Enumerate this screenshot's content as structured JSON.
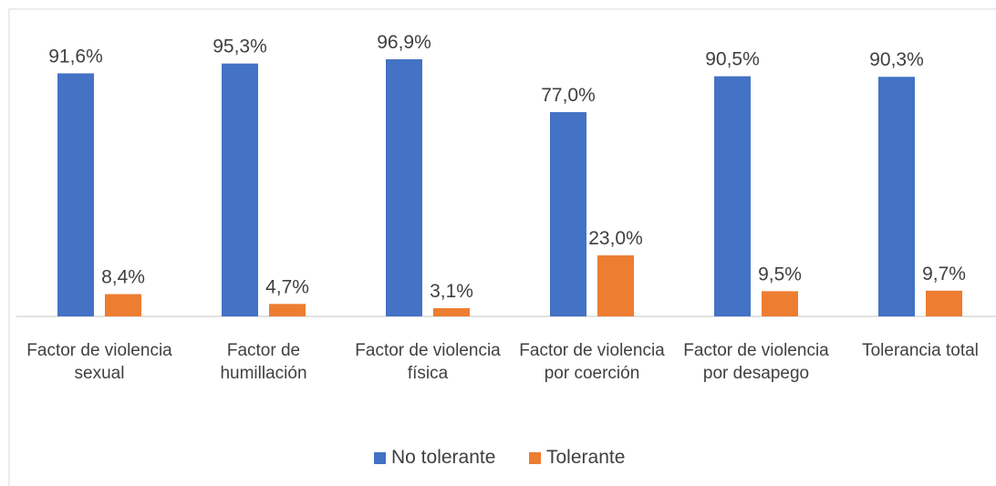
{
  "chart_data": {
    "type": "bar",
    "categories": [
      "Factor de violencia sexual",
      "Factor de humillación",
      "Factor de violencia física",
      "Factor de violencia por coerción",
      "Factor de violencia por desapego",
      "Tolerancia total"
    ],
    "series": [
      {
        "name": "No tolerante",
        "color": "#4472c4",
        "values": [
          91.6,
          95.3,
          96.9,
          77.0,
          90.5,
          90.3
        ],
        "value_labels": [
          "91,6%",
          "95,3%",
          "96,9%",
          "77,0%",
          "90,5%",
          "90,3%"
        ]
      },
      {
        "name": "Tolerante",
        "color": "#ed7d31",
        "values": [
          8.4,
          4.7,
          3.1,
          23.0,
          9.5,
          9.7
        ],
        "value_labels": [
          "8,4%",
          "4,7%",
          "3,1%",
          "23,0%",
          "9,5%",
          "9,7%"
        ]
      }
    ],
    "ylim": [
      0,
      100
    ],
    "legend": "bottom"
  }
}
